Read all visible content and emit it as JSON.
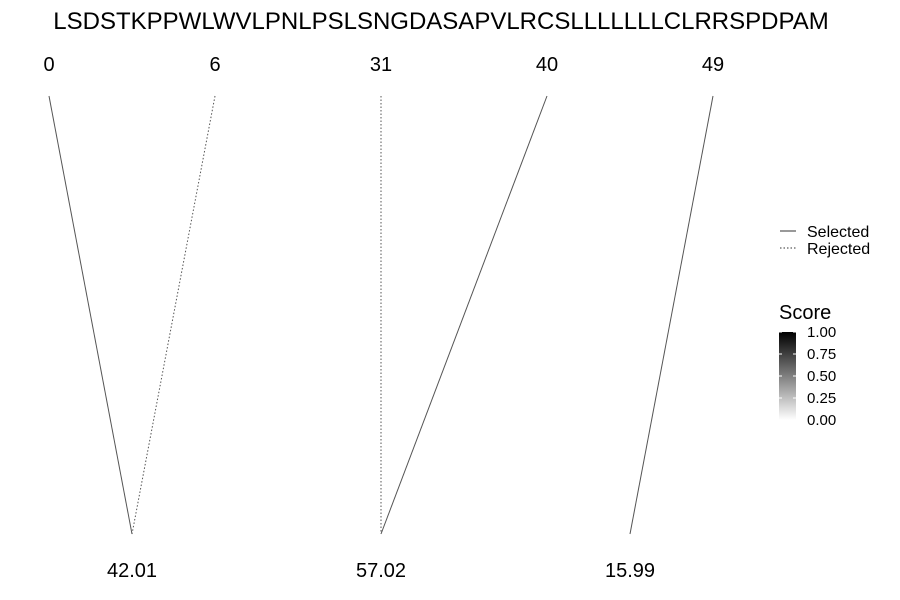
{
  "chart_data": {
    "type": "diagram",
    "sequence": "LSDSTKPPWLWVLPNLPSLSNGDASAPVLRCSLLLLLLLCLRRSPDPAM",
    "top_positions": [
      0,
      6,
      31,
      40,
      49
    ],
    "bottom_values": [
      42.01,
      57.02,
      15.99
    ],
    "links": [
      {
        "from": 0,
        "to": 42.01,
        "status": "Selected"
      },
      {
        "from": 6,
        "to": 42.01,
        "status": "Rejected"
      },
      {
        "from": 31,
        "to": 57.02,
        "status": "Rejected"
      },
      {
        "from": 40,
        "to": 57.02,
        "status": "Selected"
      },
      {
        "from": 49,
        "to": 15.99,
        "status": "Selected"
      }
    ],
    "line_legend": {
      "entries": [
        {
          "label": "Selected",
          "style": "solid"
        },
        {
          "label": "Rejected",
          "style": "dotted"
        }
      ]
    },
    "score_legend": {
      "title": "Score",
      "ticks": [
        "1.00",
        "0.75",
        "0.50",
        "0.25",
        "0.00"
      ],
      "range": [
        0,
        1
      ],
      "colors": {
        "high": "#000000",
        "low": "#ffffff"
      }
    }
  }
}
